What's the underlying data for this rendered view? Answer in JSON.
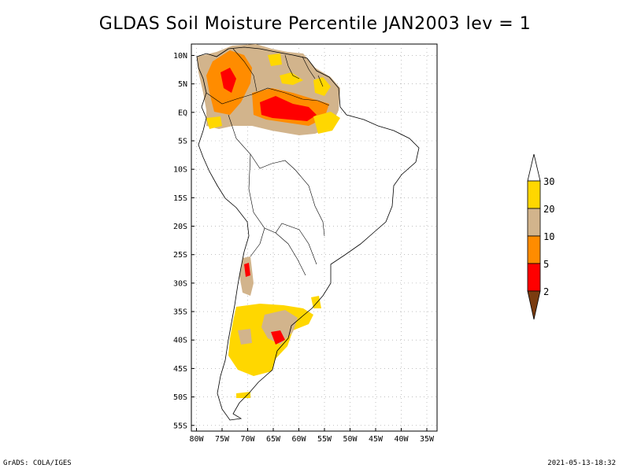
{
  "title": "GLDAS Soil Moisture Percentile JAN2003 lev = 1",
  "footer": {
    "left": "GrADS: COLA/IGES",
    "right": "2021-05-13-18:32"
  },
  "map": {
    "lat_ticks": [
      "10N",
      "5N",
      "EQ",
      "5S",
      "10S",
      "15S",
      "20S",
      "25S",
      "30S",
      "35S",
      "40S",
      "45S",
      "50S",
      "55S"
    ],
    "lat_values": [
      10,
      5,
      0,
      -5,
      -10,
      -15,
      -20,
      -25,
      -30,
      -35,
      -40,
      -45,
      -50,
      -55
    ],
    "lon_ticks": [
      "80W",
      "75W",
      "70W",
      "65W",
      "60W",
      "55W",
      "50W",
      "45W",
      "40W",
      "35W"
    ],
    "lon_values": [
      -80,
      -75,
      -70,
      -65,
      -60,
      -55,
      -50,
      -45,
      -40,
      -35
    ],
    "lon_range": [
      -81,
      -33
    ],
    "lat_range": [
      -56,
      12
    ]
  },
  "colorbar": {
    "labels": [
      "30",
      "20",
      "10",
      "5",
      "2"
    ],
    "colors": {
      "below_2": "#7a3c10",
      "2_5": "#ff0000",
      "5_10": "#ff8c00",
      "10_20": "#d2b48c",
      "20_30": "#ffd700",
      "above_30": "#ffffff"
    }
  }
}
